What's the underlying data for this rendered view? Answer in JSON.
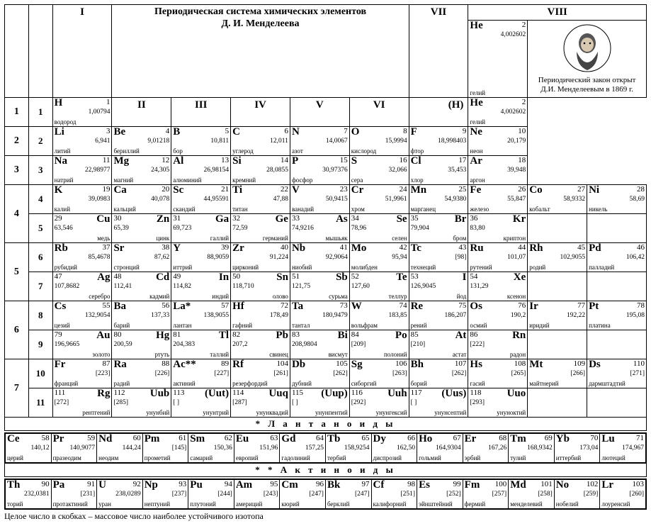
{
  "title_line1": "Периодическая система химических элементов",
  "title_line2": "Д. И. Менделеева",
  "corner_h": "(H)",
  "group_labels": [
    "I",
    "II",
    "III",
    "IV",
    "V",
    "VI",
    "VII",
    "VIII"
  ],
  "portrait_note_l1": "Периодический закон открыт",
  "portrait_note_l2": "Д.И. Менделеевым в 1869 г.",
  "lanth_header": "*   Л а н т а н о и д ы",
  "act_header": "* *   А к т и н о и д ы",
  "footnote": "Целое число в скобках – массовое число наиболее устойчивого изотопа",
  "colors": {
    "bg": "#ffffff",
    "fg": "#000000",
    "border": "#000000"
  },
  "E": {
    "H": {
      "n": "1",
      "s": "H",
      "m": "1,00794",
      "nm": "водород"
    },
    "He": {
      "n": "2",
      "s": "He",
      "m": "4,002602",
      "nm": "гелий"
    },
    "Li": {
      "n": "3",
      "s": "Li",
      "m": "6,941",
      "nm": "литий"
    },
    "Be": {
      "n": "4",
      "s": "Be",
      "m": "9,01218",
      "nm": "бериллий"
    },
    "B": {
      "n": "5",
      "s": "B",
      "m": "10,811",
      "nm": "бор"
    },
    "C": {
      "n": "6",
      "s": "C",
      "m": "12,011",
      "nm": "углерод"
    },
    "N": {
      "n": "7",
      "s": "N",
      "m": "14,0067",
      "nm": "азот"
    },
    "O": {
      "n": "8",
      "s": "O",
      "m": "15,9994",
      "nm": "кислород"
    },
    "F": {
      "n": "9",
      "s": "F",
      "m": "18,998403",
      "nm": "фтор"
    },
    "Ne": {
      "n": "10",
      "s": "Ne",
      "m": "20,179",
      "nm": "неон"
    },
    "Na": {
      "n": "11",
      "s": "Na",
      "m": "22,98977",
      "nm": "натрий"
    },
    "Mg": {
      "n": "12",
      "s": "Mg",
      "m": "24,305",
      "nm": "магний"
    },
    "Al": {
      "n": "13",
      "s": "Al",
      "m": "26,98154",
      "nm": "алюминий"
    },
    "Si": {
      "n": "14",
      "s": "Si",
      "m": "28,0855",
      "nm": "кремний"
    },
    "P": {
      "n": "15",
      "s": "P",
      "m": "30,97376",
      "nm": "фосфор"
    },
    "S": {
      "n": "16",
      "s": "S",
      "m": "32,066",
      "nm": "сера"
    },
    "Cl": {
      "n": "17",
      "s": "Cl",
      "m": "35,453",
      "nm": "хлор"
    },
    "Ar": {
      "n": "18",
      "s": "Ar",
      "m": "39,948",
      "nm": "аргон"
    },
    "K": {
      "n": "19",
      "s": "K",
      "m": "39,0983",
      "nm": "калий"
    },
    "Ca": {
      "n": "20",
      "s": "Ca",
      "m": "40,078",
      "nm": "кальций"
    },
    "Sc": {
      "n": "21",
      "s": "Sc",
      "m": "44,95591",
      "nm": "скандий"
    },
    "Ti": {
      "n": "22",
      "s": "Ti",
      "m": "47,88",
      "nm": "титан"
    },
    "V": {
      "n": "23",
      "s": "V",
      "m": "50,9415",
      "nm": "ванадий"
    },
    "Cr": {
      "n": "24",
      "s": "Cr",
      "m": "51,9961",
      "nm": "хром"
    },
    "Mn": {
      "n": "25",
      "s": "Mn",
      "m": "54,9380",
      "nm": "марганец"
    },
    "Fe": {
      "n": "26",
      "s": "Fe",
      "m": "55,847",
      "nm": "железо"
    },
    "Co": {
      "n": "27",
      "s": "Co",
      "m": "58,9332",
      "nm": "кобальт"
    },
    "Ni": {
      "n": "28",
      "s": "Ni",
      "m": "58,69",
      "nm": "никель"
    },
    "Cu": {
      "n": "29",
      "s": "Cu",
      "m": "63,546",
      "nm": "медь"
    },
    "Zn": {
      "n": "30",
      "s": "Zn",
      "m": "65,39",
      "nm": "цинк"
    },
    "Ga": {
      "n": "31",
      "s": "Ga",
      "m": "69,723",
      "nm": "галлий"
    },
    "Ge": {
      "n": "32",
      "s": "Ge",
      "m": "72,59",
      "nm": "германий"
    },
    "As": {
      "n": "33",
      "s": "As",
      "m": "74,9216",
      "nm": "мышьяк"
    },
    "Se": {
      "n": "34",
      "s": "Se",
      "m": "78,96",
      "nm": "селен"
    },
    "Br": {
      "n": "35",
      "s": "Br",
      "m": "79,904",
      "nm": "бром"
    },
    "Kr": {
      "n": "36",
      "s": "Kr",
      "m": "83,80",
      "nm": "криптон"
    },
    "Rb": {
      "n": "37",
      "s": "Rb",
      "m": "85,4678",
      "nm": "рубидий"
    },
    "Sr": {
      "n": "38",
      "s": "Sr",
      "m": "87,62",
      "nm": "стронций"
    },
    "Y": {
      "n": "39",
      "s": "Y",
      "m": "88,9059",
      "nm": "иттрий"
    },
    "Zr": {
      "n": "40",
      "s": "Zr",
      "m": "91,224",
      "nm": "цирконий"
    },
    "Nb": {
      "n": "41",
      "s": "Nb",
      "m": "92,9064",
      "nm": "ниобий"
    },
    "Mo": {
      "n": "42",
      "s": "Mo",
      "m": "95,94",
      "nm": "молибден"
    },
    "Tc": {
      "n": "43",
      "s": "Tc",
      "m": "[98]",
      "nm": "технеций"
    },
    "Ru": {
      "n": "44",
      "s": "Ru",
      "m": "101,07",
      "nm": "рутений"
    },
    "Rh": {
      "n": "45",
      "s": "Rh",
      "m": "102,9055",
      "nm": "родий"
    },
    "Pd": {
      "n": "46",
      "s": "Pd",
      "m": "106,42",
      "nm": "палладий"
    },
    "Ag": {
      "n": "47",
      "s": "Ag",
      "m": "107,8682",
      "nm": "серебро"
    },
    "Cd": {
      "n": "48",
      "s": "Cd",
      "m": "112,41",
      "nm": "кадмий"
    },
    "In": {
      "n": "49",
      "s": "In",
      "m": "114,82",
      "nm": "индий"
    },
    "Sn": {
      "n": "50",
      "s": "Sn",
      "m": "118,710",
      "nm": "олово"
    },
    "Sb": {
      "n": "51",
      "s": "Sb",
      "m": "121,75",
      "nm": "сурьма"
    },
    "Te": {
      "n": "52",
      "s": "Te",
      "m": "127,60",
      "nm": "теллур"
    },
    "I": {
      "n": "53",
      "s": "I",
      "m": "126,9045",
      "nm": "йод"
    },
    "Xe": {
      "n": "54",
      "s": "Xe",
      "m": "131,29",
      "nm": "ксенон"
    },
    "Cs": {
      "n": "55",
      "s": "Cs",
      "m": "132,9054",
      "nm": "цезий"
    },
    "Ba": {
      "n": "56",
      "s": "Ba",
      "m": "137,33",
      "nm": "барий"
    },
    "La": {
      "n": "57",
      "s": "La*",
      "m": "138,9055",
      "nm": "лантан"
    },
    "Hf": {
      "n": "72",
      "s": "Hf",
      "m": "178,49",
      "nm": "гафний"
    },
    "Ta": {
      "n": "73",
      "s": "Ta",
      "m": "180,9479",
      "nm": "тантал"
    },
    "W": {
      "n": "74",
      "s": "W",
      "m": "183,85",
      "nm": "вольфрам"
    },
    "Re": {
      "n": "75",
      "s": "Re",
      "m": "186,207",
      "nm": "рений"
    },
    "Os": {
      "n": "76",
      "s": "Os",
      "m": "190,2",
      "nm": "осмий"
    },
    "Ir": {
      "n": "77",
      "s": "Ir",
      "m": "192,22",
      "nm": "иридий"
    },
    "Pt": {
      "n": "78",
      "s": "Pt",
      "m": "195,08",
      "nm": "платина"
    },
    "Au": {
      "n": "79",
      "s": "Au",
      "m": "196,9665",
      "nm": "золото"
    },
    "Hg": {
      "n": "80",
      "s": "Hg",
      "m": "200,59",
      "nm": "ртуть"
    },
    "Tl": {
      "n": "81",
      "s": "Tl",
      "m": "204,383",
      "nm": "таллий"
    },
    "Pb": {
      "n": "82",
      "s": "Pb",
      "m": "207,2",
      "nm": "свинец"
    },
    "Bi": {
      "n": "83",
      "s": "Bi",
      "m": "208,9804",
      "nm": "висмут"
    },
    "Po": {
      "n": "84",
      "s": "Po",
      "m": "[209]",
      "nm": "полоний"
    },
    "At": {
      "n": "85",
      "s": "At",
      "m": "[210]",
      "nm": "астат"
    },
    "Rn": {
      "n": "86",
      "s": "Rn",
      "m": "[222]",
      "nm": "радон"
    },
    "Fr": {
      "n": "87",
      "s": "Fr",
      "m": "[223]",
      "nm": "франций"
    },
    "Ra": {
      "n": "88",
      "s": "Ra",
      "m": "[226]",
      "nm": "радий"
    },
    "Ac": {
      "n": "89",
      "s": "Ac**",
      "m": "[227]",
      "nm": "актиний"
    },
    "Rf": {
      "n": "104",
      "s": "Rf",
      "m": "[261]",
      "nm": "резерфордий"
    },
    "Db": {
      "n": "105",
      "s": "Db",
      "m": "[262]",
      "nm": "дубний"
    },
    "Sg": {
      "n": "106",
      "s": "Sg",
      "m": "[263]",
      "nm": "сиборгий"
    },
    "Bh": {
      "n": "107",
      "s": "Bh",
      "m": "[262]",
      "nm": "борий"
    },
    "Hs": {
      "n": "108",
      "s": "Hs",
      "m": "[265]",
      "nm": "гасий"
    },
    "Mt": {
      "n": "109",
      "s": "Mt",
      "m": "[266]",
      "nm": "майтнерий"
    },
    "Ds": {
      "n": "110",
      "s": "Ds",
      "m": "[271]",
      "nm": "дармштадтий"
    },
    "Rg": {
      "n": "111",
      "s": "Rg",
      "m": "[272]",
      "nm": "рентгений"
    },
    "Uub": {
      "n": "112",
      "s": "Uub",
      "m": "[285]",
      "nm": "унунбий"
    },
    "Uut": {
      "n": "113",
      "s": "(Uut)",
      "m": "[   ]",
      "nm": "унунтрий"
    },
    "Uuq": {
      "n": "114",
      "s": "Uuq",
      "m": "[287]",
      "nm": "унунквадий"
    },
    "Uup": {
      "n": "115",
      "s": "(Uup)",
      "m": "[   ]",
      "nm": "унунпентий"
    },
    "Uuh": {
      "n": "116",
      "s": "Uuh",
      "m": "[292]",
      "nm": "унунгексий"
    },
    "Uus": {
      "n": "117",
      "s": "(Uus)",
      "m": "[   ]",
      "nm": "унунсептий"
    },
    "Uuo": {
      "n": "118",
      "s": "Uuo",
      "m": "[293]",
      "nm": "унуноктий"
    },
    "Ce": {
      "n": "58",
      "s": "Ce",
      "m": "140,12",
      "nm": "церий"
    },
    "Pr": {
      "n": "59",
      "s": "Pr",
      "m": "140,9077",
      "nm": "празеодим"
    },
    "Nd": {
      "n": "60",
      "s": "Nd",
      "m": "144,24",
      "nm": "неодим"
    },
    "Pm": {
      "n": "61",
      "s": "Pm",
      "m": "[145]",
      "nm": "прометий"
    },
    "Sm": {
      "n": "62",
      "s": "Sm",
      "m": "150,36",
      "nm": "самарий"
    },
    "Eu": {
      "n": "63",
      "s": "Eu",
      "m": "151,96",
      "nm": "европий"
    },
    "Gd": {
      "n": "64",
      "s": "Gd",
      "m": "157,25",
      "nm": "гадолиний"
    },
    "Tb": {
      "n": "65",
      "s": "Tb",
      "m": "158,9254",
      "nm": "тербий"
    },
    "Dy": {
      "n": "66",
      "s": "Dy",
      "m": "162,50",
      "nm": "диспрозий"
    },
    "Ho": {
      "n": "67",
      "s": "Ho",
      "m": "164,9304",
      "nm": "гольмий"
    },
    "Er": {
      "n": "68",
      "s": "Er",
      "m": "167,26",
      "nm": "эрбий"
    },
    "Tm": {
      "n": "69",
      "s": "Tm",
      "m": "168,9342",
      "nm": "тулий"
    },
    "Yb": {
      "n": "70",
      "s": "Yb",
      "m": "173,04",
      "nm": "иттербий"
    },
    "Lu": {
      "n": "71",
      "s": "Lu",
      "m": "174,967",
      "nm": "лютеций"
    },
    "Th": {
      "n": "90",
      "s": "Th",
      "m": "232,0381",
      "nm": "торий"
    },
    "Pa": {
      "n": "91",
      "s": "Pa",
      "m": "[231]",
      "nm": "протактиний"
    },
    "U": {
      "n": "92",
      "s": "U",
      "m": "238,0289",
      "nm": "уран"
    },
    "Np": {
      "n": "93",
      "s": "Np",
      "m": "[237]",
      "nm": "нептуний"
    },
    "Pu": {
      "n": "94",
      "s": "Pu",
      "m": "[244]",
      "nm": "плутоний"
    },
    "Am": {
      "n": "95",
      "s": "Am",
      "m": "[243]",
      "nm": "америций"
    },
    "Cm": {
      "n": "96",
      "s": "Cm",
      "m": "[247]",
      "nm": "кюрий"
    },
    "Bk": {
      "n": "97",
      "s": "Bk",
      "m": "[247]",
      "nm": "берклий"
    },
    "Cf": {
      "n": "98",
      "s": "Cf",
      "m": "[251]",
      "nm": "калифорний"
    },
    "Es": {
      "n": "99",
      "s": "Es",
      "m": "[252]",
      "nm": "эйнштейний"
    },
    "Fm": {
      "n": "100",
      "s": "Fm",
      "m": "[257]",
      "nm": "фермий"
    },
    "Md": {
      "n": "101",
      "s": "Md",
      "m": "[258]",
      "nm": "менделевий"
    },
    "No": {
      "n": "102",
      "s": "No",
      "m": "[259]",
      "nm": "нобелий"
    },
    "Lr": {
      "n": "103",
      "s": "Lr",
      "m": "[260]",
      "nm": "лоуренсий"
    }
  },
  "layout": {
    "periods": [
      {
        "p": "1",
        "rows": [
          {
            "r": "1",
            "align": "L",
            "cells": [
              "H",
              null,
              null,
              null,
              null,
              null,
              null
            ],
            "g8": [
              "He",
              null,
              null
            ]
          }
        ]
      },
      {
        "p": "2",
        "rows": [
          {
            "r": "2",
            "align": "L",
            "cells": [
              "Li",
              "Be",
              "B",
              "C",
              "N",
              "O",
              "F"
            ],
            "g8": [
              "Ne",
              null,
              null
            ]
          }
        ]
      },
      {
        "p": "3",
        "rows": [
          {
            "r": "3",
            "align": "L",
            "cells": [
              "Na",
              "Mg",
              "Al",
              "Si",
              "P",
              "S",
              "Cl"
            ],
            "g8": [
              "Ar",
              null,
              null
            ]
          }
        ]
      },
      {
        "p": "4",
        "rows": [
          {
            "r": "4",
            "align": "L",
            "cells": [
              "K",
              "Ca",
              "Sc",
              "Ti",
              "V",
              "Cr",
              "Mn"
            ],
            "g8": [
              "Fe",
              "Co",
              "Ni"
            ]
          },
          {
            "r": "5",
            "align": "R",
            "cells": [
              "Cu",
              "Zn",
              "Ga",
              "Ge",
              "As",
              "Se",
              "Br"
            ],
            "g8": [
              "Kr",
              null,
              null
            ]
          }
        ]
      },
      {
        "p": "5",
        "rows": [
          {
            "r": "6",
            "align": "L",
            "cells": [
              "Rb",
              "Sr",
              "Y",
              "Zr",
              "Nb",
              "Mo",
              "Tc"
            ],
            "g8": [
              "Ru",
              "Rh",
              "Pd"
            ]
          },
          {
            "r": "7",
            "align": "R",
            "cells": [
              "Ag",
              "Cd",
              "In",
              "Sn",
              "Sb",
              "Te",
              "I"
            ],
            "g8": [
              "Xe",
              null,
              null
            ]
          }
        ]
      },
      {
        "p": "6",
        "rows": [
          {
            "r": "8",
            "align": "L",
            "cells": [
              "Cs",
              "Ba",
              "La",
              "Hf",
              "Ta",
              "W",
              "Re"
            ],
            "g8": [
              "Os",
              "Ir",
              "Pt"
            ]
          },
          {
            "r": "9",
            "align": "R",
            "cells": [
              "Au",
              "Hg",
              "Tl",
              "Pb",
              "Bi",
              "Po",
              "At"
            ],
            "g8": [
              "Rn",
              null,
              null
            ]
          }
        ]
      },
      {
        "p": "7",
        "rows": [
          {
            "r": "10",
            "align": "L",
            "cells": [
              "Fr",
              "Ra",
              "Ac",
              "Rf",
              "Db",
              "Sg",
              "Bh"
            ],
            "g8": [
              "Hs",
              "Mt",
              "Ds"
            ]
          },
          {
            "r": "11",
            "align": "R",
            "cells": [
              "Rg",
              "Uub",
              "Uut",
              "Uuq",
              "Uup",
              "Uuh",
              "Uus"
            ],
            "g8": [
              "Uuo",
              null,
              null
            ]
          }
        ]
      }
    ],
    "lanth": [
      "Ce",
      "Pr",
      "Nd",
      "Pm",
      "Sm",
      "Eu",
      "Gd",
      "Tb",
      "Dy",
      "Ho",
      "Er",
      "Tm",
      "Yb",
      "Lu"
    ],
    "act": [
      "Th",
      "Pa",
      "U",
      "Np",
      "Pu",
      "Am",
      "Cm",
      "Bk",
      "Cf",
      "Es",
      "Fm",
      "Md",
      "No",
      "Lr"
    ]
  }
}
